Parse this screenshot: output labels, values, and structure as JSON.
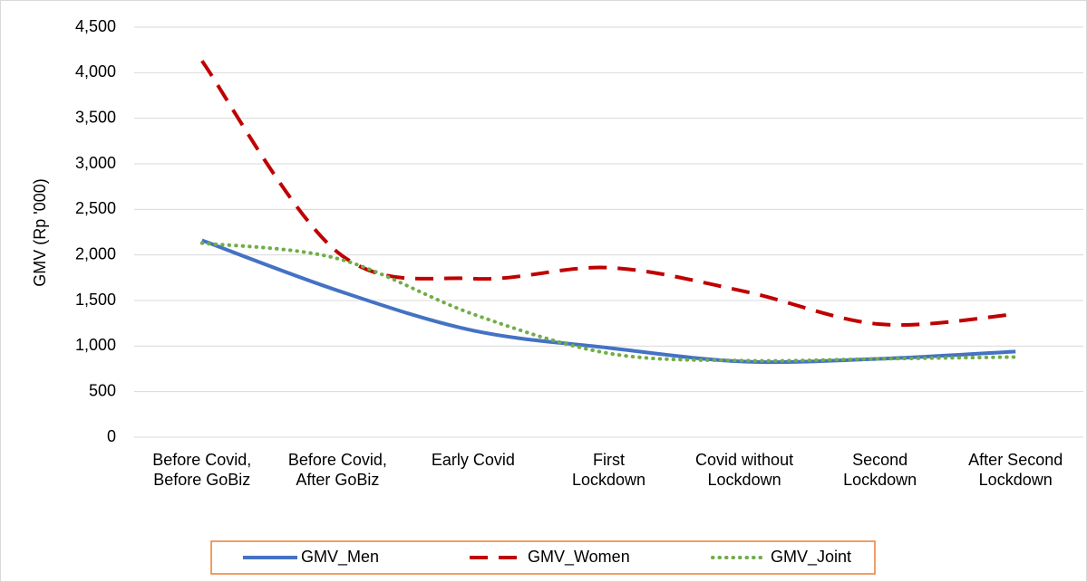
{
  "chart_data": {
    "type": "line",
    "y_label": "GMV (Rp '000)",
    "categories": [
      "Before Covid,\nBefore GoBiz",
      "Before Covid,\nAfter GoBiz",
      "Early Covid",
      "First\nLockdown",
      "Covid without\nLockdown",
      "Second\nLockdown",
      "After Second\nLockdown"
    ],
    "series": [
      {
        "name": "GMV_Men",
        "color": "#4472c4",
        "style": "solid",
        "values": [
          2160,
          1610,
          1170,
          980,
          830,
          860,
          940
        ]
      },
      {
        "name": "GMV_Women",
        "color": "#c00000",
        "style": "dashed",
        "values": [
          4130,
          2030,
          1740,
          1860,
          1600,
          1240,
          1350
        ]
      },
      {
        "name": "GMV_Joint",
        "color": "#70ad47",
        "style": "dotted",
        "values": [
          2130,
          1960,
          1350,
          920,
          840,
          860,
          880
        ]
      }
    ],
    "ylim": [
      0,
      4500
    ],
    "yticks": [
      0,
      500,
      {
        "value": 1000,
        "label": "1,000"
      },
      {
        "value": 1500,
        "label": "1,500"
      },
      {
        "value": 2000,
        "label": "2,000"
      },
      {
        "value": 2500,
        "label": "2,500"
      },
      {
        "value": 3000,
        "label": "3,000"
      },
      {
        "value": 3500,
        "label": "3,500"
      },
      {
        "value": 4000,
        "label": "4,000"
      },
      {
        "value": 4500,
        "label": "4,500"
      }
    ],
    "grid": true,
    "smooth": true,
    "legend": "bottom"
  }
}
